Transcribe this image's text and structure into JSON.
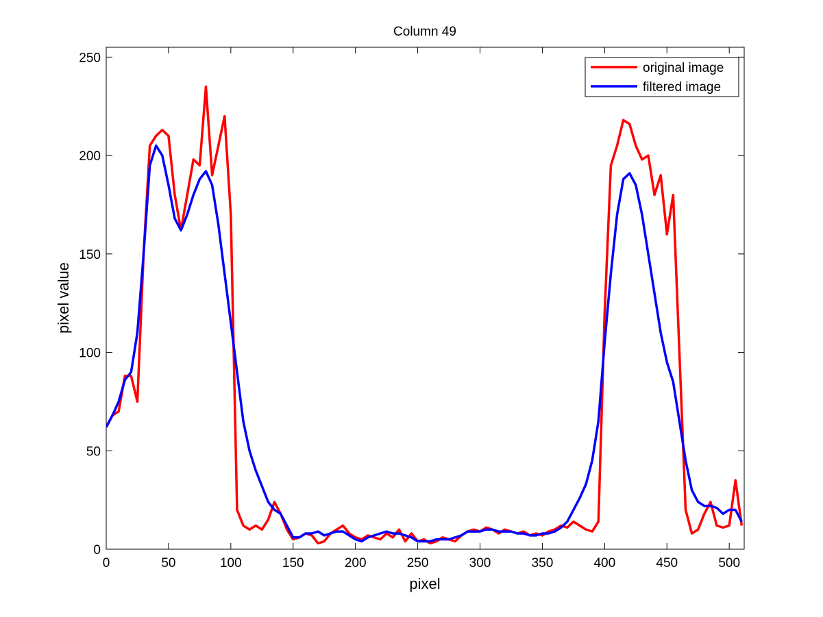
{
  "chart_data": {
    "type": "line",
    "title": "Column 49",
    "xlabel": "pixel",
    "ylabel": "pixel value",
    "x": [
      0,
      5,
      10,
      15,
      20,
      25,
      30,
      35,
      40,
      45,
      50,
      55,
      60,
      65,
      70,
      75,
      80,
      85,
      90,
      95,
      100,
      105,
      110,
      115,
      120,
      125,
      130,
      135,
      140,
      145,
      150,
      155,
      160,
      165,
      170,
      175,
      180,
      185,
      190,
      195,
      200,
      205,
      210,
      215,
      220,
      225,
      230,
      235,
      240,
      245,
      250,
      255,
      260,
      265,
      270,
      275,
      280,
      285,
      290,
      295,
      300,
      305,
      310,
      315,
      320,
      325,
      330,
      335,
      340,
      345,
      350,
      355,
      360,
      365,
      370,
      375,
      380,
      385,
      390,
      395,
      400,
      405,
      410,
      415,
      420,
      425,
      430,
      435,
      440,
      445,
      450,
      455,
      460,
      465,
      470,
      475,
      480,
      485,
      490,
      495,
      500,
      505,
      510
    ],
    "series": [
      {
        "name": "original image",
        "color": "#ff0000",
        "values": [
          62,
          68,
          70,
          88,
          88,
          75,
          150,
          205,
          210,
          213,
          210,
          180,
          162,
          180,
          198,
          195,
          235,
          190,
          205,
          220,
          170,
          20,
          12,
          10,
          12,
          10,
          15,
          24,
          18,
          10,
          5,
          6,
          8,
          7,
          3,
          4,
          8,
          10,
          12,
          8,
          6,
          5,
          7,
          6,
          5,
          8,
          6,
          10,
          4,
          8,
          4,
          5,
          3,
          4,
          6,
          5,
          4,
          7,
          9,
          10,
          9,
          11,
          10,
          8,
          10,
          9,
          8,
          9,
          7,
          8,
          7,
          9,
          10,
          12,
          11,
          14,
          12,
          10,
          9,
          14,
          120,
          195,
          205,
          218,
          216,
          205,
          198,
          200,
          180,
          190,
          160,
          180,
          100,
          20,
          8,
          10,
          18,
          24,
          12,
          11,
          12,
          35,
          12
        ]
      },
      {
        "name": "filtered image",
        "color": "#0000ff",
        "values": [
          62,
          68,
          75,
          86,
          90,
          110,
          150,
          195,
          205,
          200,
          185,
          168,
          162,
          170,
          180,
          188,
          192,
          185,
          165,
          140,
          115,
          90,
          65,
          50,
          40,
          32,
          24,
          20,
          18,
          12,
          6,
          6,
          8,
          8,
          9,
          7,
          8,
          9,
          9,
          7,
          5,
          4,
          6,
          7,
          8,
          9,
          8,
          8,
          7,
          6,
          4,
          4,
          4,
          5,
          5,
          5,
          6,
          7,
          9,
          9,
          9,
          10,
          10,
          9,
          9,
          9,
          8,
          8,
          7,
          7,
          8,
          8,
          9,
          11,
          14,
          20,
          26,
          33,
          45,
          65,
          105,
          140,
          170,
          188,
          191,
          185,
          170,
          150,
          130,
          110,
          95,
          85,
          65,
          45,
          30,
          24,
          22,
          22,
          21,
          18,
          20,
          20,
          14
        ]
      }
    ],
    "xlim": [
      0,
      512
    ],
    "ylim": [
      0,
      255
    ],
    "xticks": [
      0,
      50,
      100,
      150,
      200,
      250,
      300,
      350,
      400,
      450,
      500
    ],
    "yticks": [
      0,
      50,
      100,
      150,
      200,
      250
    ],
    "legend": "northeast"
  }
}
